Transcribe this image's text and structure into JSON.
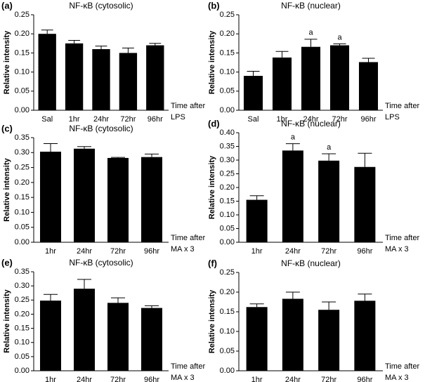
{
  "chart_data": [
    {
      "type": "bar",
      "panel": "(a)",
      "title": "NF-κB (cytosolic)",
      "ylabel": "Relative intensity",
      "xlabel": [
        "Time after",
        "LPS"
      ],
      "categories": [
        "Sal",
        "1hr",
        "24hr",
        "72hr",
        "96hr"
      ],
      "values": [
        0.2,
        0.175,
        0.16,
        0.15,
        0.17
      ],
      "errors": [
        0.01,
        0.008,
        0.008,
        0.013,
        0.005
      ],
      "color": "#000000",
      "ylim": [
        0,
        0.25
      ],
      "yticks": [
        {
          "value": 0,
          "label": "0.00"
        },
        {
          "value": 0.05,
          "label": "0.05"
        },
        {
          "value": 0.1,
          "label": "0.10"
        },
        {
          "value": 0.15,
          "label": "0.15"
        },
        {
          "value": 0.2,
          "label": "0.20"
        },
        {
          "value": 0.25,
          "label": "0.25"
        }
      ]
    },
    {
      "type": "bar",
      "panel": "(b)",
      "title": "NF-κB (nuclear)",
      "ylabel": "Relative intensity",
      "xlabel": [
        "Time after",
        "LPS"
      ],
      "categories": [
        "Sal",
        "1hr",
        "24hr",
        "72hr",
        "96hr"
      ],
      "values": [
        0.09,
        0.138,
        0.166,
        0.17,
        0.126
      ],
      "errors": [
        0.012,
        0.016,
        0.02,
        0.004,
        0.01
      ],
      "annotations": [
        null,
        null,
        "a",
        "a",
        null
      ],
      "color": "#000000",
      "ylim": [
        0,
        0.25
      ],
      "yticks": [
        {
          "value": 0,
          "label": "0.00"
        },
        {
          "value": 0.05,
          "label": "0.05"
        },
        {
          "value": 0.1,
          "label": "0.10"
        },
        {
          "value": 0.15,
          "label": "0.15"
        },
        {
          "value": 0.2,
          "label": "0.20"
        },
        {
          "value": 0.25,
          "label": "0.25"
        }
      ]
    },
    {
      "type": "bar",
      "panel": "(c)",
      "title": "NF-κB (cytosolic)",
      "ylabel": "Relative intensity",
      "xlabel": [
        "Time after",
        "MA x 3"
      ],
      "categories": [
        "1hr",
        "24hr",
        "72hr",
        "96hr"
      ],
      "values": [
        0.303,
        0.313,
        0.282,
        0.285
      ],
      "errors": [
        0.027,
        0.007,
        0.002,
        0.01
      ],
      "color": "#000000",
      "ylim": [
        0,
        0.35
      ],
      "yticks": [
        {
          "value": 0,
          "label": "0.00"
        },
        {
          "value": 0.05,
          "label": "0.05"
        },
        {
          "value": 0.1,
          "label": "0.10"
        },
        {
          "value": 0.15,
          "label": "0.15"
        },
        {
          "value": 0.2,
          "label": "0.20"
        },
        {
          "value": 0.25,
          "label": "0.25"
        },
        {
          "value": 0.3,
          "label": "0.30"
        },
        {
          "value": 0.35,
          "label": "0.35"
        }
      ]
    },
    {
      "type": "bar",
      "panel": "(d)",
      "title": "NF-κB (nuclear)",
      "ylabel": "Relative intensity",
      "xlabel": [
        "Time after",
        "MA x 3"
      ],
      "categories": [
        "1hr",
        "24hr",
        "72hr",
        "96hr"
      ],
      "values": [
        0.155,
        0.335,
        0.298,
        0.275
      ],
      "errors": [
        0.015,
        0.025,
        0.025,
        0.05
      ],
      "annotations": [
        null,
        "a",
        "a",
        null
      ],
      "color": "#000000",
      "ylim": [
        0,
        0.4
      ],
      "yticks": [
        {
          "value": 0,
          "label": "0.00"
        },
        {
          "value": 0.05,
          "label": "0.05"
        },
        {
          "value": 0.1,
          "label": "0.10"
        },
        {
          "value": 0.15,
          "label": "0.15"
        },
        {
          "value": 0.2,
          "label": "0.20"
        },
        {
          "value": 0.25,
          "label": "0.25"
        },
        {
          "value": 0.3,
          "label": "0.30"
        },
        {
          "value": 0.35,
          "label": "0.35"
        },
        {
          "value": 0.4,
          "label": "0.40"
        }
      ]
    },
    {
      "type": "bar",
      "panel": "(e)",
      "title": "NF-κB (cytosolic)",
      "ylabel": "Relative intensity",
      "xlabel": [
        "Time after",
        "MA x 3"
      ],
      "categories": [
        "1hr",
        "24hr",
        "72hr",
        "96hr"
      ],
      "values": [
        0.248,
        0.29,
        0.24,
        0.222
      ],
      "errors": [
        0.022,
        0.033,
        0.018,
        0.008
      ],
      "color": "#000000",
      "ylim": [
        0,
        0.35
      ],
      "yticks": [
        {
          "value": 0,
          "label": "0.00"
        },
        {
          "value": 0.05,
          "label": "0.05"
        },
        {
          "value": 0.1,
          "label": "0.10"
        },
        {
          "value": 0.15,
          "label": "0.15"
        },
        {
          "value": 0.2,
          "label": "0.20"
        },
        {
          "value": 0.25,
          "label": "0.25"
        },
        {
          "value": 0.3,
          "label": "0.30"
        },
        {
          "value": 0.35,
          "label": "0.35"
        }
      ]
    },
    {
      "type": "bar",
      "panel": "(f)",
      "title": "NF-κB (nuclear)",
      "ylabel": "Relative intensity",
      "xlabel": [
        "Time after",
        "MA x 3"
      ],
      "categories": [
        "1hr",
        "24hr",
        "72hr",
        "96hr"
      ],
      "values": [
        0.162,
        0.183,
        0.155,
        0.178
      ],
      "errors": [
        0.008,
        0.017,
        0.02,
        0.017
      ],
      "color": "#000000",
      "ylim": [
        0,
        0.25
      ],
      "yticks": [
        {
          "value": 0,
          "label": "0.00"
        },
        {
          "value": 0.05,
          "label": "0.05"
        },
        {
          "value": 0.1,
          "label": "0.10"
        },
        {
          "value": 0.15,
          "label": "0.15"
        },
        {
          "value": 0.2,
          "label": "0.20"
        },
        {
          "value": 0.25,
          "label": "0.25"
        }
      ]
    }
  ]
}
